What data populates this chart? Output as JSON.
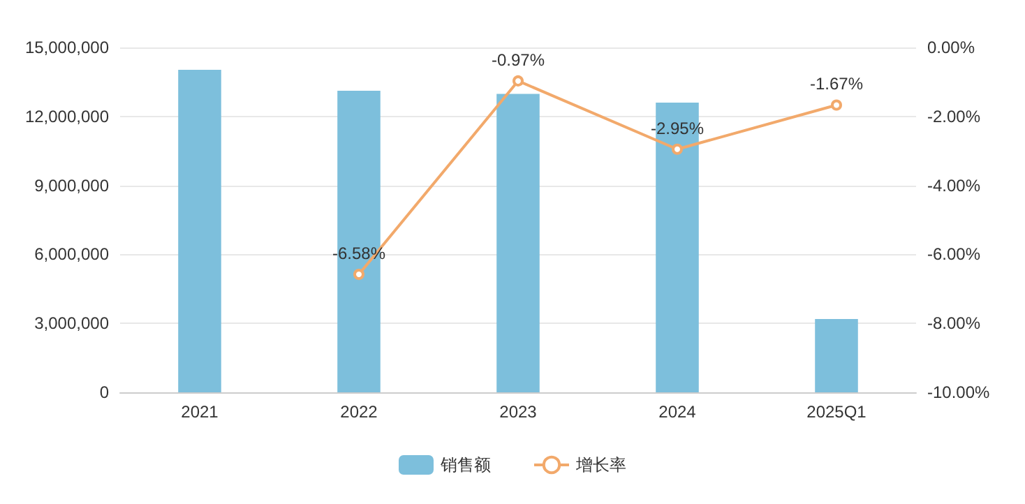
{
  "chart_data": {
    "type": "bar",
    "categories": [
      "2021",
      "2022",
      "2023",
      "2024",
      "2025Q1"
    ],
    "series": [
      {
        "name": "销售额",
        "color": "#7dbfdc",
        "values": [
          14030000,
          13120000,
          12980000,
          12600000,
          3190000
        ]
      },
      {
        "name": "增长率",
        "type": "line",
        "axis": "y2",
        "color": "#f2a96b",
        "values": [
          null,
          -6.58,
          -0.97,
          -2.95,
          -1.67
        ],
        "value_labels": [
          null,
          "-6.58%",
          "-0.97%",
          "-2.95%",
          "-1.67%"
        ],
        "marker": "circle"
      }
    ],
    "ylim": [
      0,
      15000000
    ],
    "yticks": [
      {
        "value": 0,
        "label": "0"
      },
      {
        "value": 3000000,
        "label": "3,000,000"
      },
      {
        "value": 6000000,
        "label": "6,000,000"
      },
      {
        "value": 9000000,
        "label": "9,000,000"
      },
      {
        "value": 12000000,
        "label": "12,000,000"
      },
      {
        "value": 15000000,
        "label": "15,000,000"
      }
    ],
    "y2lim": [
      -10,
      0
    ],
    "y2ticks": [
      {
        "value": -10,
        "label": "-10.00%"
      },
      {
        "value": -8,
        "label": "-8.00%"
      },
      {
        "value": -6,
        "label": "-6.00%"
      },
      {
        "value": -4,
        "label": "-4.00%"
      },
      {
        "value": -2,
        "label": "-2.00%"
      },
      {
        "value": 0,
        "label": "0.00%"
      }
    ],
    "grid": "y",
    "legend": "bottom"
  }
}
